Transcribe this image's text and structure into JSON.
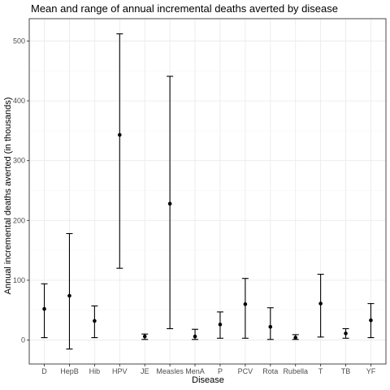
{
  "chart_data": {
    "type": "scatter",
    "subtype": "point-with-errorbars",
    "title": "Mean and range of annual incremental deaths averted by disease",
    "xlabel": "Disease",
    "ylabel": "Annual incremental deaths averted (in thousands)",
    "categories": [
      "D",
      "HepB",
      "Hib",
      "HPV",
      "JE",
      "Measles",
      "MenA",
      "P",
      "PCV",
      "Rota",
      "Rubella",
      "T",
      "TB",
      "YF"
    ],
    "series": [
      {
        "mean": [
          52,
          74,
          32,
          343,
          6,
          228,
          6,
          26,
          60,
          22,
          4,
          61,
          11,
          33
        ],
        "min": [
          4,
          -15,
          4,
          120,
          1,
          19,
          1,
          3,
          3,
          1,
          1,
          5,
          3,
          4
        ],
        "max": [
          94,
          178,
          57,
          512,
          10,
          441,
          18,
          47,
          103,
          54,
          9,
          110,
          19,
          61
        ]
      }
    ],
    "ylim": [
      -40,
      535
    ],
    "yticks": [
      0,
      100,
      200,
      300,
      400,
      500
    ],
    "grid": true,
    "legend": "none",
    "colors": {
      "point": "#000000",
      "errorbar": "#000000",
      "grid": "#ebebeb",
      "panel_border": "#333333"
    }
  }
}
